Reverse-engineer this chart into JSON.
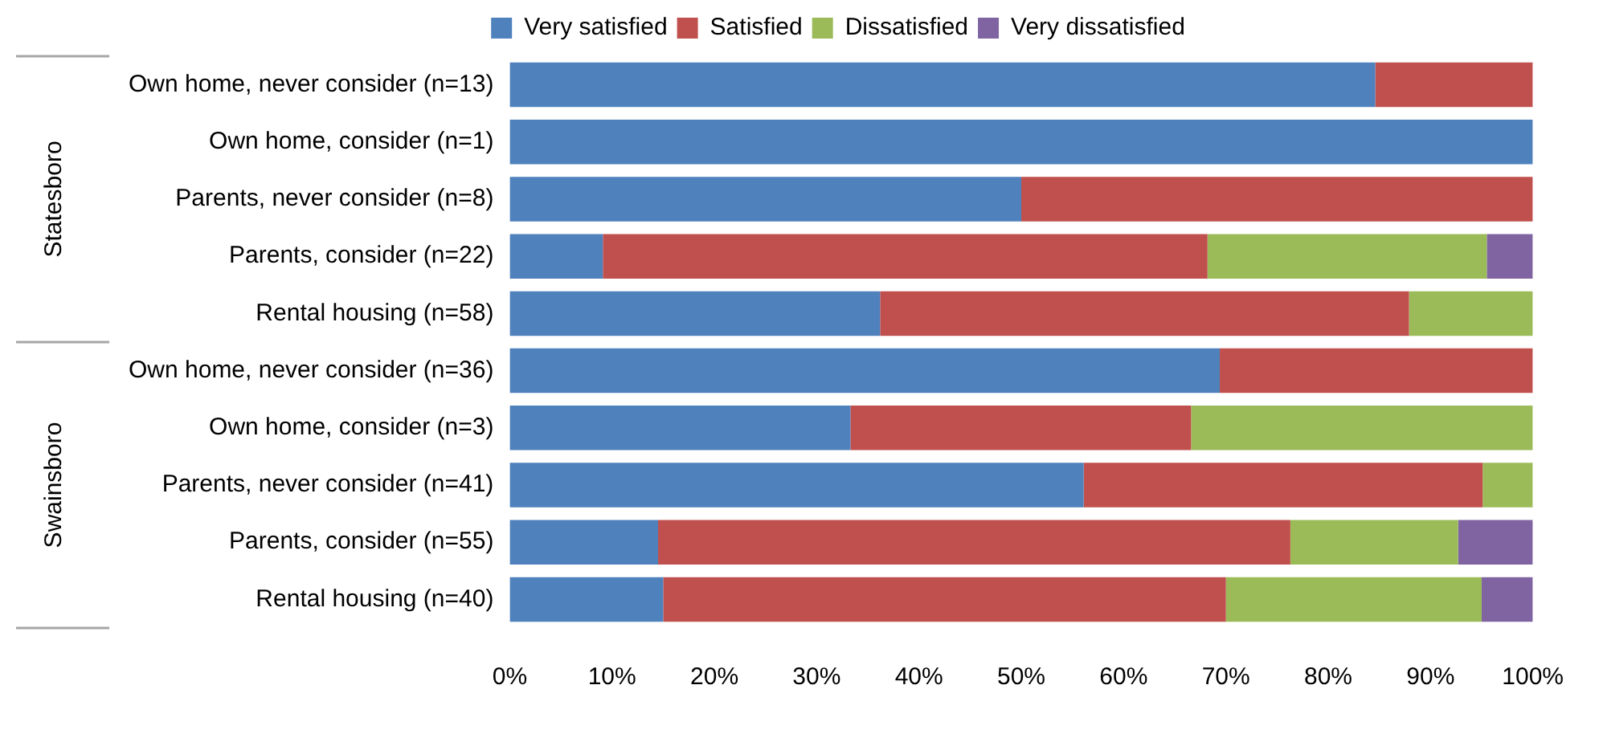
{
  "chart_data": {
    "type": "bar",
    "orientation": "horizontal",
    "stacked": true,
    "categories": [
      "Own home, never consider (n=13)",
      "Own home, consider (n=1)",
      "Parents, never consider (n=8)",
      "Parents, consider (n=22)",
      "Rental housing (n=58)",
      "Own home, never consider (n=36)",
      "Own home, consider (n=3)",
      "Parents, never consider (n=41)",
      "Parents, consider (n=55)",
      "Rental housing (n=40)"
    ],
    "series": [
      {
        "name": "Very satisfied",
        "color": "#4f81bd",
        "values": [
          84.6,
          100,
          50,
          9.1,
          36.2,
          69.4,
          33.3,
          56.1,
          14.5,
          15
        ]
      },
      {
        "name": "Satisfied",
        "color": "#c0504d",
        "values": [
          15.4,
          0,
          50,
          59.1,
          51.7,
          30.6,
          33.3,
          39.0,
          61.8,
          55
        ]
      },
      {
        "name": "Dissatisfied",
        "color": "#9bbb59",
        "values": [
          0,
          0,
          0,
          27.3,
          12.1,
          0,
          33.4,
          4.9,
          16.4,
          25
        ]
      },
      {
        "name": "Very dissatisfied",
        "color": "#8064a2",
        "values": [
          0,
          0,
          0,
          4.5,
          0,
          0,
          0,
          0,
          7.3,
          5
        ]
      }
    ],
    "xlim": [
      0,
      100
    ],
    "xticks": [
      {
        "value": 0,
        "label": "0%"
      },
      {
        "value": 10,
        "label": "10%"
      },
      {
        "value": 20,
        "label": "20%"
      },
      {
        "value": 30,
        "label": "30%"
      },
      {
        "value": 40,
        "label": "40%"
      },
      {
        "value": 50,
        "label": "50%"
      },
      {
        "value": 60,
        "label": "60%"
      },
      {
        "value": 70,
        "label": "70%"
      },
      {
        "value": 80,
        "label": "80%"
      },
      {
        "value": 90,
        "label": "90%"
      },
      {
        "value": 100,
        "label": "100%"
      }
    ],
    "grid": false,
    "legend": "top",
    "annotations": [
      "Statesboro",
      "Swainsboro"
    ]
  }
}
